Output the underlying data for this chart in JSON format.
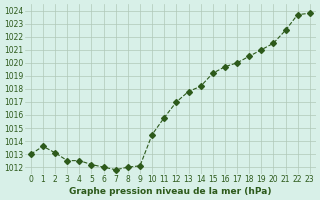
{
  "x": [
    0,
    1,
    2,
    3,
    4,
    5,
    6,
    7,
    8,
    9,
    10,
    11,
    12,
    13,
    14,
    15,
    16,
    17,
    18,
    19,
    20,
    21,
    22,
    23
  ],
  "y": [
    1013.0,
    1013.6,
    1013.1,
    1012.5,
    1012.5,
    1012.2,
    1012.0,
    1011.8,
    1012.0,
    1012.1,
    1014.5,
    1015.8,
    1017.0,
    1017.8,
    1018.2,
    1019.2,
    1019.7,
    1020.0,
    1020.5,
    1021.0,
    1021.5,
    1022.5,
    1023.7,
    1023.8
  ],
  "line_color": "#2d5a1b",
  "marker": "D",
  "marker_size": 3,
  "linewidth": 0.8,
  "linestyle": "--",
  "bg_color": "#d8f0e8",
  "grid_color": "#b0c8b8",
  "xlabel": "Graphe pression niveau de la mer (hPa)",
  "xlabel_color": "#2d5a1b",
  "tick_color": "#2d5a1b",
  "ylim_min": 1011.5,
  "ylim_max": 1024.5,
  "xlim_min": -0.5,
  "xlim_max": 23.5,
  "yticks": [
    1012,
    1013,
    1014,
    1015,
    1016,
    1017,
    1018,
    1019,
    1020,
    1021,
    1022,
    1023,
    1024
  ],
  "xticks": [
    0,
    1,
    2,
    3,
    4,
    5,
    6,
    7,
    8,
    9,
    10,
    11,
    12,
    13,
    14,
    15,
    16,
    17,
    18,
    19,
    20,
    21,
    22,
    23
  ]
}
